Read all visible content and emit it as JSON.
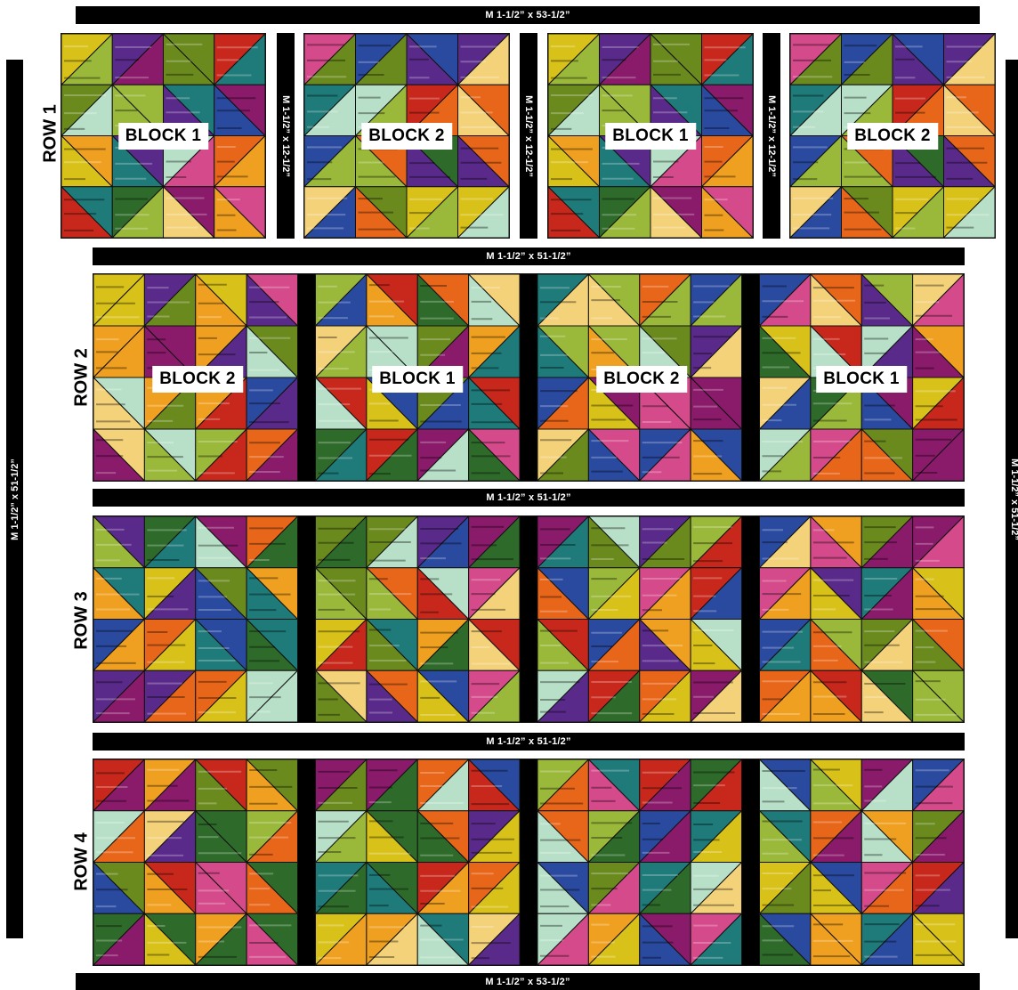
{
  "strips": {
    "top": "M 1-1/2” x 53-1/2”",
    "bottom": "M 1-1/2” x 53-1/2”",
    "left": "M 1-1/2” x 51-1/2”",
    "right": "M 1-1/2” x 51-1/2”",
    "sash1": "M 1-1/2” x 51-1/2”",
    "sash2": "M 1-1/2” x 51-1/2”",
    "sash3": "M 1-1/2” x 51-1/2”",
    "row1_v1": "M 1-1/2” x 12-1/2”",
    "row1_v2": "M 1-1/2” x 12-1/2”",
    "row1_v3": "M 1-1/2” x 12-1/2”"
  },
  "rows": [
    {
      "label": "ROW 1",
      "blocks": [
        "BLOCK 1",
        "BLOCK 2",
        "BLOCK 1",
        "BLOCK 2"
      ]
    },
    {
      "label": "ROW 2",
      "blocks": [
        "BLOCK 2",
        "BLOCK 1",
        "BLOCK 2",
        "BLOCK 1"
      ]
    },
    {
      "label": "ROW 3",
      "blocks": []
    },
    {
      "label": "ROW 4",
      "blocks": []
    }
  ],
  "palette": [
    "#c8281c",
    "#e8661a",
    "#f0a020",
    "#d8c21a",
    "#6a8a1e",
    "#2e6b2a",
    "#1f7a7a",
    "#2a4aa0",
    "#5a2a8a",
    "#8a1a6a",
    "#b8e0c8",
    "#f3d27a",
    "#d44a8a",
    "#9ab83a"
  ]
}
